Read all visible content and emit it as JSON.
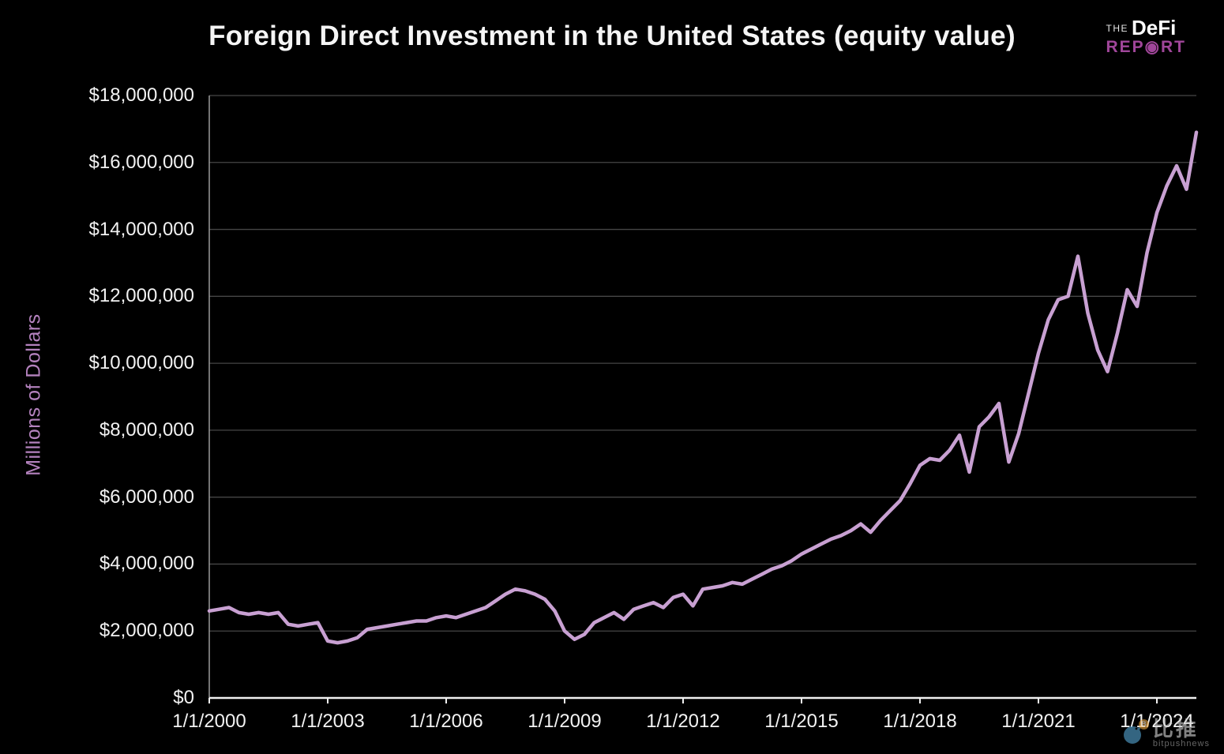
{
  "page": {
    "background": "#000000",
    "accent_purple": "#a0469a",
    "line_color": "#c8a0d2",
    "grid_color": "#464646"
  },
  "title": "Foreign Direct Investment in the United States (equity value)",
  "logo": {
    "the": "THE",
    "defi": "DeFi",
    "report_pre": "REP",
    "report_o": "◉",
    "report_post": "RT"
  },
  "watermark": {
    "cjk": "比推",
    "latin": "bitpushnews",
    "badge": "B"
  },
  "chart_data": {
    "type": "line",
    "title": "Foreign Direct Investment in the United States (equity value)",
    "xlabel": "",
    "ylabel": "Millions of Dollars",
    "ylim": [
      0,
      18000000
    ],
    "grid": true,
    "legend": false,
    "frequency": "quarterly",
    "x_start": "1/1/2000",
    "x_end": "1/1/2025",
    "y_ticks": [
      {
        "value": 0,
        "label": "$0"
      },
      {
        "value": 2000000,
        "label": "$2,000,000"
      },
      {
        "value": 4000000,
        "label": "$4,000,000"
      },
      {
        "value": 6000000,
        "label": "$6,000,000"
      },
      {
        "value": 8000000,
        "label": "$8,000,000"
      },
      {
        "value": 10000000,
        "label": "$10,000,000"
      },
      {
        "value": 12000000,
        "label": "$12,000,000"
      },
      {
        "value": 14000000,
        "label": "$14,000,000"
      },
      {
        "value": 16000000,
        "label": "$16,000,000"
      },
      {
        "value": 18000000,
        "label": "$18,000,000"
      }
    ],
    "x_ticks": [
      {
        "index": 0,
        "label": "1/1/2000"
      },
      {
        "index": 12,
        "label": "1/1/2003"
      },
      {
        "index": 24,
        "label": "1/1/2006"
      },
      {
        "index": 36,
        "label": "1/1/2009"
      },
      {
        "index": 48,
        "label": "1/1/2012"
      },
      {
        "index": 60,
        "label": "1/1/2015"
      },
      {
        "index": 72,
        "label": "1/1/2018"
      },
      {
        "index": 84,
        "label": "1/1/2021"
      },
      {
        "index": 96,
        "label": "1/1/2024"
      }
    ],
    "series": [
      {
        "name": "FDI in the United States (equity value, millions of dollars)",
        "color": "#c8a0d2",
        "values": [
          2600000,
          2650000,
          2700000,
          2550000,
          2500000,
          2550000,
          2500000,
          2550000,
          2200000,
          2150000,
          2200000,
          2250000,
          1700000,
          1650000,
          1700000,
          1800000,
          2050000,
          2100000,
          2150000,
          2200000,
          2250000,
          2300000,
          2300000,
          2400000,
          2450000,
          2400000,
          2500000,
          2600000,
          2700000,
          2900000,
          3100000,
          3250000,
          3200000,
          3100000,
          2950000,
          2600000,
          2000000,
          1750000,
          1900000,
          2250000,
          2400000,
          2550000,
          2350000,
          2650000,
          2750000,
          2850000,
          2700000,
          3000000,
          3100000,
          2750000,
          3250000,
          3300000,
          3350000,
          3450000,
          3400000,
          3550000,
          3700000,
          3850000,
          3950000,
          4100000,
          4300000,
          4450000,
          4600000,
          4750000,
          4850000,
          5000000,
          5200000,
          4950000,
          5300000,
          5600000,
          5900000,
          6400000,
          6950000,
          7150000,
          7100000,
          7400000,
          7850000,
          6750000,
          8100000,
          8400000,
          8800000,
          7050000,
          7900000,
          9100000,
          10300000,
          11300000,
          11900000,
          12000000,
          13200000,
          11500000,
          10400000,
          9750000,
          10900000,
          12200000,
          11700000,
          13300000,
          14500000,
          15300000,
          15900000,
          15200000,
          16900000
        ]
      }
    ]
  }
}
